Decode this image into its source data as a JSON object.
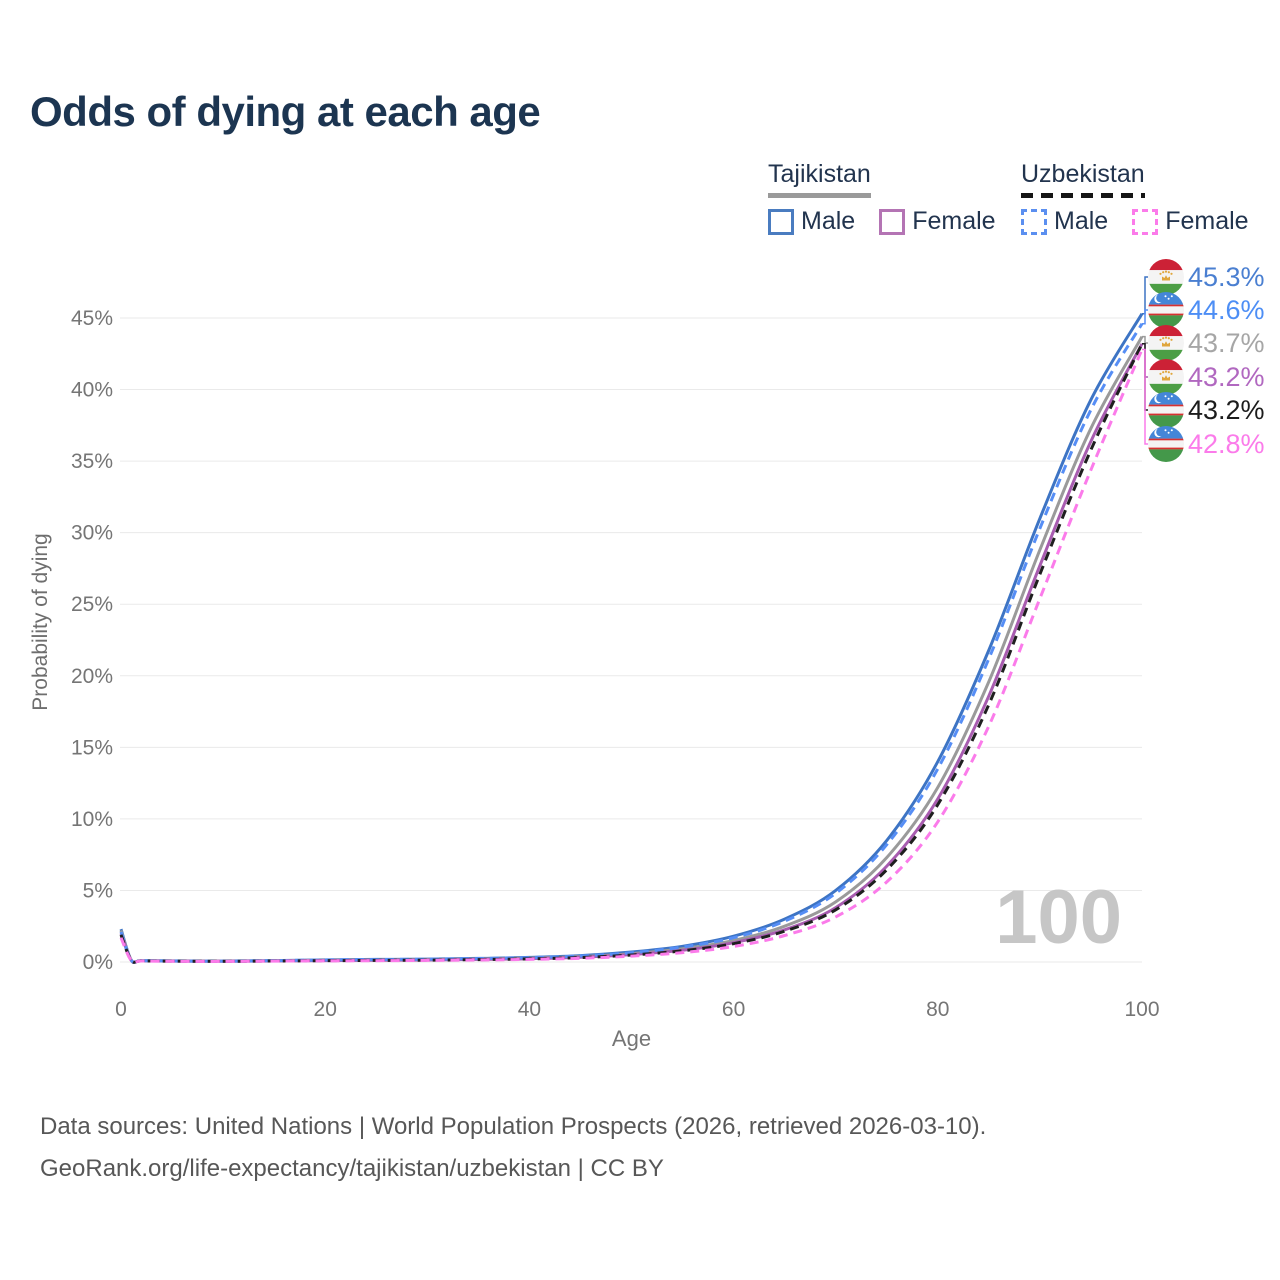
{
  "title": "Odds of dying at each age",
  "legend": {
    "groups": [
      {
        "label": "Tajikistan",
        "line_style": "solid",
        "rule_color": "#9a9a9a",
        "items": [
          {
            "label": "Male",
            "swatch_color": "#4a7cc0",
            "swatch_style": "solid"
          },
          {
            "label": "Female",
            "swatch_color": "#b474b4",
            "swatch_style": "solid"
          }
        ]
      },
      {
        "label": "Uzbekistan",
        "line_style": "dashed",
        "rule_color": "#151515",
        "items": [
          {
            "label": "Male",
            "swatch_color": "#5b8ff0",
            "swatch_style": "dashed"
          },
          {
            "label": "Female",
            "swatch_color": "#fb7bea",
            "swatch_style": "dashed"
          }
        ]
      }
    ]
  },
  "chart_data": {
    "type": "line",
    "title": "Odds of dying at each age",
    "xlabel": "Age",
    "ylabel": "Probability of dying",
    "xlim": [
      0,
      100
    ],
    "ylim_pct": [
      0,
      47
    ],
    "x_ticks": [
      0,
      20,
      40,
      60,
      80,
      100
    ],
    "y_ticks_pct": [
      0,
      5,
      10,
      15,
      20,
      25,
      30,
      35,
      40,
      45
    ],
    "y_tick_suffix": "%",
    "grid": "horizontal",
    "age_indicator": "100",
    "ages": [
      0,
      1,
      2,
      5,
      10,
      15,
      20,
      25,
      30,
      35,
      40,
      45,
      50,
      55,
      60,
      65,
      70,
      75,
      80,
      85,
      90,
      95,
      100
    ],
    "series": [
      {
        "id": "tajikistan-male",
        "name": "Tajikistan – male",
        "flag": "tajikistan",
        "line": "solid",
        "color": "#3d74c4",
        "label_color": "#4a7fd1",
        "end_label": "45.3%",
        "end_value": 45.3,
        "values": [
          2.3,
          0.15,
          0.1,
          0.08,
          0.07,
          0.1,
          0.15,
          0.18,
          0.2,
          0.25,
          0.32,
          0.45,
          0.7,
          1.1,
          1.8,
          3.0,
          5.0,
          8.5,
          14.0,
          21.8,
          31.0,
          39.3,
          45.3
        ]
      },
      {
        "id": "uzbekistan-male",
        "name": "Uzbekistan – male",
        "flag": "uzbekistan",
        "line": "dashed",
        "color": "#568ef5",
        "label_color": "#4d8ef5",
        "end_label": "44.6%",
        "end_value": 44.6,
        "values": [
          2.1,
          0.13,
          0.09,
          0.07,
          0.06,
          0.09,
          0.14,
          0.17,
          0.19,
          0.24,
          0.3,
          0.42,
          0.65,
          1.05,
          1.7,
          2.85,
          4.8,
          8.2,
          13.5,
          21.2,
          30.3,
          38.6,
          44.6
        ]
      },
      {
        "id": "tajikistan-all",
        "name": "Tajikistan – all",
        "flag": "tajikistan",
        "line": "solid",
        "color": "#9a9a9a",
        "label_color": "#a6a6a6",
        "end_label": "43.7%",
        "end_value": 43.7,
        "values": [
          2.2,
          0.14,
          0.09,
          0.07,
          0.06,
          0.08,
          0.12,
          0.15,
          0.17,
          0.21,
          0.27,
          0.38,
          0.58,
          0.92,
          1.5,
          2.5,
          4.2,
          7.3,
          12.2,
          19.6,
          28.8,
          37.3,
          43.7
        ]
      },
      {
        "id": "tajikistan-female",
        "name": "Tajikistan – female",
        "flag": "tajikistan",
        "line": "solid",
        "color": "#a85cb0",
        "label_color": "#b168c0",
        "end_label": "43.2%",
        "end_value": 43.2,
        "values": [
          2.0,
          0.12,
          0.08,
          0.06,
          0.05,
          0.07,
          0.1,
          0.12,
          0.14,
          0.18,
          0.23,
          0.33,
          0.52,
          0.82,
          1.35,
          2.25,
          3.8,
          6.7,
          11.4,
          18.6,
          27.7,
          36.4,
          43.2
        ]
      },
      {
        "id": "uzbekistan-all",
        "name": "Uzbekistan – all",
        "flag": "uzbekistan",
        "line": "dashed",
        "color": "#1f1f1f",
        "label_color": "#1c1c1c",
        "end_label": "43.2%",
        "end_value": 43.2,
        "values": [
          1.9,
          0.12,
          0.08,
          0.06,
          0.05,
          0.07,
          0.09,
          0.11,
          0.13,
          0.17,
          0.22,
          0.31,
          0.49,
          0.78,
          1.28,
          2.15,
          3.65,
          6.45,
          11.0,
          18.0,
          27.1,
          35.8,
          43.2
        ]
      },
      {
        "id": "uzbekistan-female",
        "name": "Uzbekistan – female",
        "flag": "uzbekistan",
        "line": "dashed",
        "color": "#fb7bea",
        "label_color": "#fb7bea",
        "end_label": "42.8%",
        "end_value": 42.8,
        "values": [
          1.7,
          0.11,
          0.07,
          0.05,
          0.04,
          0.06,
          0.08,
          0.09,
          0.11,
          0.14,
          0.18,
          0.26,
          0.41,
          0.66,
          1.08,
          1.85,
          3.15,
          5.6,
          9.8,
          16.5,
          25.4,
          34.4,
          42.8
        ]
      }
    ]
  },
  "footer": {
    "line1": "Data sources: United Nations | World Population Prospects (2026, retrieved 2026-03-10).",
    "line2": "GeoRank.org/life-expectancy/tajikistan/uzbekistan | CC BY"
  }
}
